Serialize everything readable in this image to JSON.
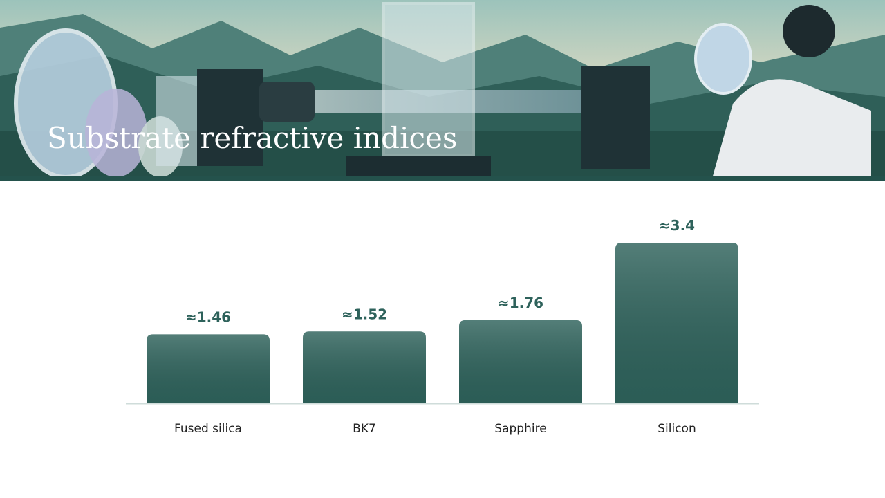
{
  "chart_data": {
    "type": "bar",
    "title": "Substrate refractive indices",
    "categories": [
      "Fused silica",
      "BK7",
      "Sapphire",
      "Silicon"
    ],
    "values": [
      1.46,
      1.52,
      1.76,
      3.4
    ],
    "value_labels": [
      "≈1.46",
      "≈1.52",
      "≈1.76",
      "≈3.4"
    ],
    "color": "#2e625b"
  }
}
